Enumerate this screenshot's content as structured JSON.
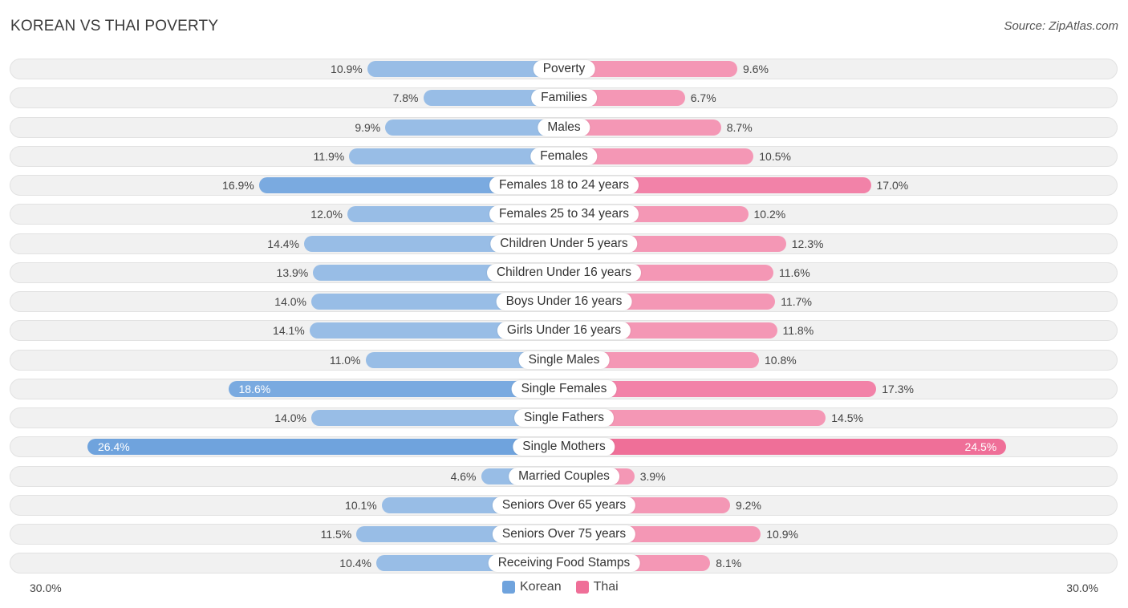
{
  "header": {
    "title": "KOREAN VS THAI POVERTY",
    "source": "Source: ZipAtlas.com"
  },
  "colors": {
    "korean": "#98bde6",
    "korean_strong": "#6fa3dd",
    "thai": "#f497b5",
    "thai_strong": "#ef6f98"
  },
  "legend": {
    "korean": "Korean",
    "thai": "Thai"
  },
  "axis": {
    "left_label": "30.0%",
    "right_label": "30.0%"
  },
  "chart_data": {
    "type": "bar",
    "orientation": "diverging-horizontal",
    "xlim": [
      -30,
      30
    ],
    "categories": [
      "Poverty",
      "Families",
      "Males",
      "Females",
      "Females 18 to 24 years",
      "Females 25 to 34 years",
      "Children Under 5 years",
      "Children Under 16 years",
      "Boys Under 16 years",
      "Girls Under 16 years",
      "Single Males",
      "Single Females",
      "Single Fathers",
      "Single Mothers",
      "Married Couples",
      "Seniors Over 65 years",
      "Seniors Over 75 years",
      "Receiving Food Stamps"
    ],
    "series": [
      {
        "name": "Korean",
        "values": [
          10.9,
          7.8,
          9.9,
          11.9,
          16.9,
          12.0,
          14.4,
          13.9,
          14.0,
          14.1,
          11.0,
          18.6,
          14.0,
          26.4,
          4.6,
          10.1,
          11.5,
          10.4
        ],
        "labels": [
          "10.9%",
          "7.8%",
          "9.9%",
          "11.9%",
          "16.9%",
          "12.0%",
          "14.4%",
          "13.9%",
          "14.0%",
          "14.1%",
          "11.0%",
          "18.6%",
          "14.0%",
          "26.4%",
          "4.6%",
          "10.1%",
          "11.5%",
          "10.4%"
        ]
      },
      {
        "name": "Thai",
        "values": [
          9.6,
          6.7,
          8.7,
          10.5,
          17.0,
          10.2,
          12.3,
          11.6,
          11.7,
          11.8,
          10.8,
          17.3,
          14.5,
          24.5,
          3.9,
          9.2,
          10.9,
          8.1
        ],
        "labels": [
          "9.6%",
          "6.7%",
          "8.7%",
          "10.5%",
          "17.0%",
          "10.2%",
          "12.3%",
          "11.6%",
          "11.7%",
          "11.8%",
          "10.8%",
          "17.3%",
          "14.5%",
          "24.5%",
          "3.9%",
          "9.2%",
          "10.9%",
          "8.1%"
        ]
      }
    ]
  }
}
